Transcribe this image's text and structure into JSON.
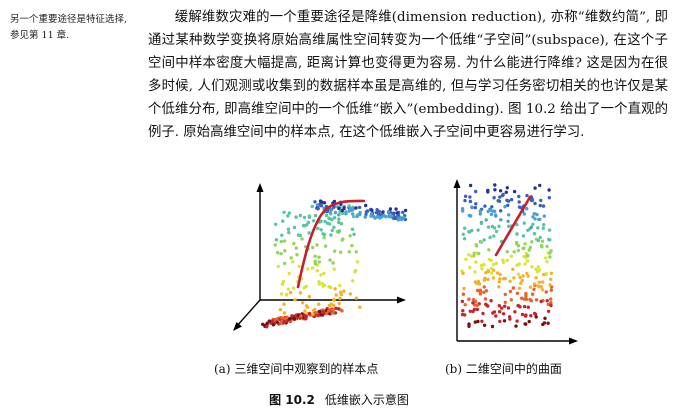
{
  "margin_note": "另一个重要途径是特征选择, 参见第 11 章.",
  "paragraph": "缓解维数灾难的一个重要途径是降维(dimension reduction), 亦称“维数约简”, 即通过某种数学变换将原始高维属性空间转变为一个低维“子空间”(subspace), 在这个子空间中样本密度大幅提高, 距离计算也变得更为容易. 为什么能进行降维? 这是因为在很多时候, 人们观测或收集到的数据样本虽是高维的, 但与学习任务密切相关的也许仅是某个低维分布, 即高维空间中的一个低维“嵌入”(embedding). 图 10.2 给出了一个直观的例子. 原始高维空间中的样本点, 在这个低维嵌入子空间中更容易进行学习.",
  "figure": {
    "subcaption_a": "(a) 三维空间中观察到的样本点",
    "subcaption_b": "(b) 二维空间中的曲面",
    "number": "图 10.2",
    "caption": "低维嵌入示意图"
  },
  "colors": {
    "curve": "#c81e2a",
    "axis": "#000000",
    "palette": [
      "#7a0f14",
      "#c0282b",
      "#e8622a",
      "#f2b12e",
      "#d8e63a",
      "#8fd65a",
      "#57c4a3",
      "#4a9fd8",
      "#3a5fc0",
      "#27308a"
    ]
  }
}
